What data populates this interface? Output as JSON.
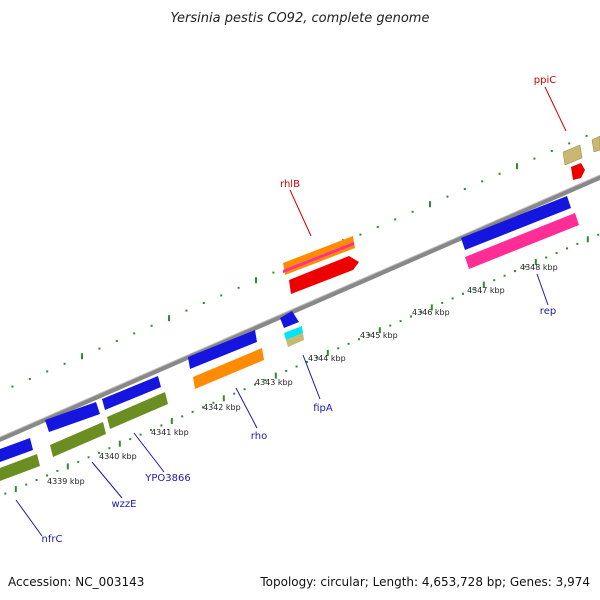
{
  "title": "Yersinia pestis CO92, complete genome",
  "footer": {
    "accession": "Accession: NC_003143",
    "summary": "Topology: circular; Length: 4,653,728 bp; Genes: 3,974"
  },
  "ticks": [
    {
      "label": "4339 kbp"
    },
    {
      "label": "4340 kbp"
    },
    {
      "label": "4341 kbp"
    },
    {
      "label": "4342 kbp"
    },
    {
      "label": "4343 kbp"
    },
    {
      "label": "4344 kbp"
    },
    {
      "label": "4345 kbp"
    },
    {
      "label": "4346 kbp"
    },
    {
      "label": "4347 kbp"
    },
    {
      "label": "4348 kbp"
    }
  ],
  "gene_labels": [
    {
      "name": "ppiC",
      "color": "#d40000"
    },
    {
      "name": "rhlB",
      "color": "#d40000"
    },
    {
      "name": "rep",
      "color": "#1a1aa8"
    },
    {
      "name": "fipA",
      "color": "#1a1aa8"
    },
    {
      "name": "rho",
      "color": "#1a1aa8"
    },
    {
      "name": "YPO3866",
      "color": "#1a1aa8"
    },
    {
      "name": "wzzE",
      "color": "#1a1aa8"
    },
    {
      "name": "nfrC",
      "color": "#1a1aa8"
    }
  ],
  "colors": {
    "backbone": "#8a8a8a",
    "dots": "#2e8b2e",
    "cds_blue": "#1515e0",
    "rrna_orange": "#ff8c00",
    "gene_green": "#6b8e23",
    "gene_pink": "#ff2d95",
    "gene_red": "#ee0000",
    "gene_khaki": "#c8b870",
    "gene_cyan": "#00e5ee"
  }
}
